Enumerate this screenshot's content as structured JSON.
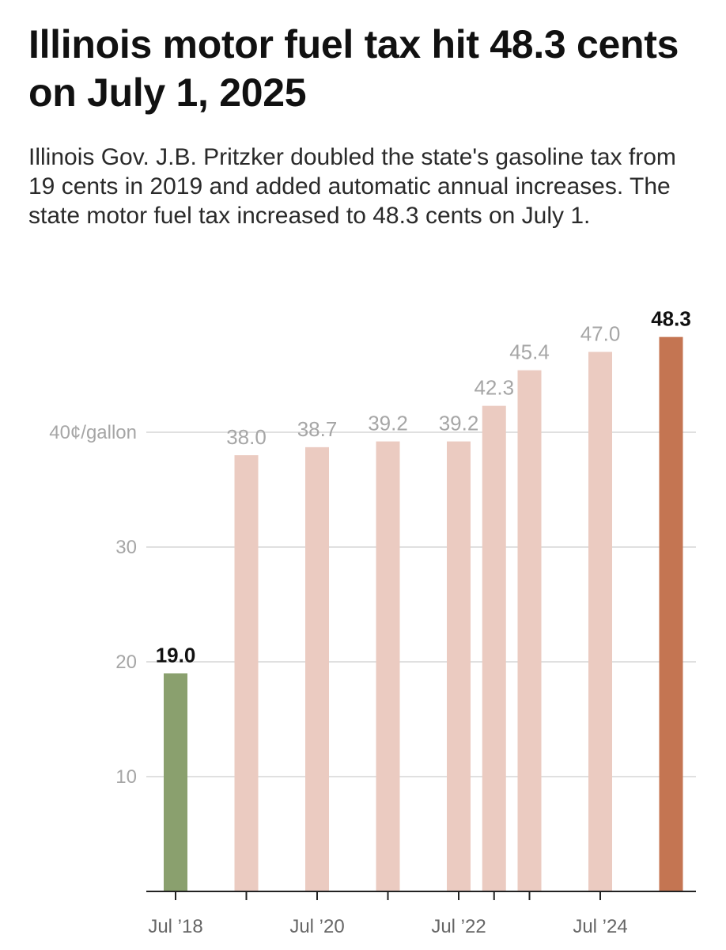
{
  "title": "Illinois motor fuel tax hit 48.3 cents on July 1, 2025",
  "subtitle": "Illinois Gov. J.B. Pritzker doubled the state's gasoline tax from 19 cents in 2019 and added automatic annual increases. The state motor fuel tax increased to 48.3 cents on July 1.",
  "chart_data": {
    "type": "bar",
    "title": "Illinois motor fuel tax hit 48.3 cents on July 1, 2025",
    "xlabel": "",
    "ylabel": "cents per gallon",
    "ylim": [
      0,
      50
    ],
    "yticks": [
      {
        "value": 10,
        "label": "10"
      },
      {
        "value": 20,
        "label": "20"
      },
      {
        "value": 30,
        "label": "30"
      },
      {
        "value": 40,
        "label": "40¢/gallon"
      }
    ],
    "xlim": [
      2018.0,
      2025.9
    ],
    "xticks": [
      {
        "x": 2018.5,
        "label": "Jul ’18"
      },
      {
        "x": 2019.5,
        "label": ""
      },
      {
        "x": 2020.5,
        "label": "Jul ’20"
      },
      {
        "x": 2021.5,
        "label": ""
      },
      {
        "x": 2022.5,
        "label": "Jul ’22"
      },
      {
        "x": 2023.0,
        "label": ""
      },
      {
        "x": 2023.5,
        "label": ""
      },
      {
        "x": 2024.5,
        "label": "Jul ’24"
      }
    ],
    "bars": [
      {
        "x": 2018.5,
        "value": 19.0,
        "label": "19.0",
        "color": "#8aa06e",
        "bold": true
      },
      {
        "x": 2019.5,
        "value": 38.0,
        "label": "38.0",
        "color": "#ebcbc1",
        "bold": false
      },
      {
        "x": 2020.5,
        "value": 38.7,
        "label": "38.7",
        "color": "#ebcbc1",
        "bold": false
      },
      {
        "x": 2021.5,
        "value": 39.2,
        "label": "39.2",
        "color": "#ebcbc1",
        "bold": false
      },
      {
        "x": 2022.5,
        "value": 39.2,
        "label": "39.2",
        "color": "#ebcbc1",
        "bold": false
      },
      {
        "x": 2023.0,
        "value": 42.3,
        "label": "42.3",
        "color": "#ebcbc1",
        "bold": false
      },
      {
        "x": 2023.5,
        "value": 45.4,
        "label": "45.4",
        "color": "#ebcbc1",
        "bold": false
      },
      {
        "x": 2024.5,
        "value": 47.0,
        "label": "47.0",
        "color": "#ebcbc1",
        "bold": false
      },
      {
        "x": 2025.5,
        "value": 48.3,
        "label": "48.3",
        "color": "#c47552",
        "bold": true
      }
    ]
  }
}
